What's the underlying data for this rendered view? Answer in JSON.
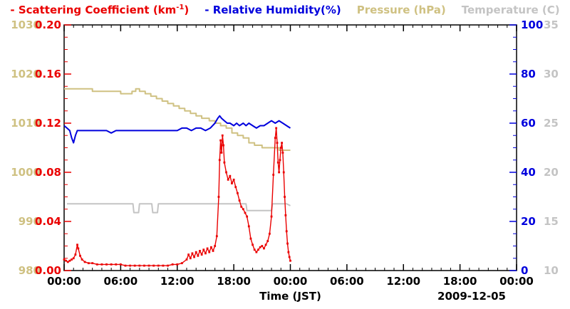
{
  "legend": {
    "scattering_pre": "- Scattering Coefficient (km",
    "scattering_sup": "-1",
    "scattering_post": ")",
    "humidity": "- Relative Humidity(%)",
    "pressure": "Pressure (hPa)",
    "temperature": "Temperature (C)"
  },
  "chart_data": {
    "type": "line",
    "title": "",
    "date_label": "2009-12-05",
    "x_axis": {
      "label": "Time (JST)",
      "range": [
        0,
        48
      ],
      "minor_step": 1,
      "tick_values": [
        0,
        6,
        12,
        18,
        24,
        30,
        36,
        42,
        48
      ],
      "tick_labels": [
        "00:00",
        "06:00",
        "12:00",
        "18:00",
        "00:00",
        "06:00",
        "12:00",
        "18:00",
        "00:00"
      ]
    },
    "y_axes": [
      {
        "id": "pressure",
        "label": "Pressure (hPa)",
        "color": "#cfc182",
        "range": [
          980,
          1030
        ],
        "tick_values": [
          980,
          990,
          1000,
          1010,
          1020,
          1030
        ],
        "tick_labels": [
          "980",
          "990",
          "1000",
          "1010",
          "1020",
          "1030"
        ]
      },
      {
        "id": "scattering",
        "label": "Scattering Coefficient (km-1)",
        "color": "#ea0000",
        "range": [
          0,
          0.2
        ],
        "minor_step": 0.01,
        "tick_values": [
          0,
          0.04,
          0.08,
          0.12,
          0.16,
          0.2
        ],
        "tick_labels": [
          "0.00",
          "0.04",
          "0.08",
          "0.12",
          "0.16",
          "0.20"
        ]
      },
      {
        "id": "humidity",
        "label": "Relative Humidity(%)",
        "color": "#0000dd",
        "range": [
          0,
          100
        ],
        "minor_step": 5,
        "tick_values": [
          0,
          20,
          40,
          60,
          80,
          100
        ],
        "tick_labels": [
          "0",
          "20",
          "40",
          "60",
          "80",
          "100"
        ]
      },
      {
        "id": "temperature",
        "label": "Temperature (C)",
        "color": "#c4c4c4",
        "range": [
          10,
          35
        ],
        "tick_values": [
          10,
          15,
          20,
          25,
          30,
          35
        ],
        "tick_labels": [
          "10",
          "15",
          "20",
          "25",
          "30",
          "35"
        ]
      }
    ],
    "series": [
      {
        "id": "pressure",
        "name": "Pressure (hPa)",
        "axis": "pressure",
        "color": "#cfc182",
        "step": true,
        "marker": false,
        "points": [
          [
            0,
            1017
          ],
          [
            1,
            1017
          ],
          [
            2,
            1017
          ],
          [
            3,
            1016.5
          ],
          [
            4,
            1016.5
          ],
          [
            5,
            1016.5
          ],
          [
            6,
            1016
          ],
          [
            6.6,
            1016
          ],
          [
            7.2,
            1016.5
          ],
          [
            7.6,
            1017
          ],
          [
            8,
            1016.5
          ],
          [
            8.6,
            1016
          ],
          [
            9.2,
            1015.5
          ],
          [
            9.8,
            1015
          ],
          [
            10.4,
            1014.5
          ],
          [
            11,
            1014
          ],
          [
            11.6,
            1013.5
          ],
          [
            12.2,
            1013
          ],
          [
            12.8,
            1012.5
          ],
          [
            13.4,
            1012
          ],
          [
            14,
            1011.5
          ],
          [
            14.6,
            1011
          ],
          [
            15.4,
            1010.5
          ],
          [
            16,
            1010
          ],
          [
            16.6,
            1009.5
          ],
          [
            17.2,
            1009
          ],
          [
            17.8,
            1008
          ],
          [
            18.4,
            1007.5
          ],
          [
            19,
            1007
          ],
          [
            19.6,
            1006
          ],
          [
            20.2,
            1005.5
          ],
          [
            21,
            1005
          ],
          [
            22,
            1005
          ],
          [
            22.8,
            1004.5
          ],
          [
            24,
            1004.5
          ]
        ]
      },
      {
        "id": "temperature",
        "name": "Temperature (C)",
        "axis": "temperature",
        "color": "#c4c4c4",
        "step": false,
        "marker": false,
        "points": [
          [
            0.3,
            16.8
          ],
          [
            7.3,
            16.8
          ],
          [
            7.4,
            15.9
          ],
          [
            7.9,
            15.9
          ],
          [
            8,
            16.8
          ],
          [
            9.3,
            16.8
          ],
          [
            9.4,
            15.9
          ],
          [
            9.9,
            15.9
          ],
          [
            10,
            16.8
          ],
          [
            19.3,
            16.8
          ],
          [
            19.4,
            16.1
          ],
          [
            22,
            16.1
          ],
          [
            22.1,
            16.8
          ],
          [
            23.6,
            16.8
          ],
          [
            24,
            16.6
          ]
        ]
      },
      {
        "id": "humidity",
        "name": "Relative Humidity(%)",
        "axis": "humidity",
        "color": "#0000dd",
        "step": false,
        "marker": false,
        "points": [
          [
            0,
            59
          ],
          [
            0.3,
            58
          ],
          [
            0.6,
            57
          ],
          [
            0.8,
            54
          ],
          [
            1,
            52
          ],
          [
            1.2,
            55
          ],
          [
            1.4,
            57
          ],
          [
            2,
            57
          ],
          [
            2.5,
            57
          ],
          [
            3,
            57
          ],
          [
            3.5,
            57
          ],
          [
            4,
            57
          ],
          [
            4.5,
            57
          ],
          [
            5,
            56
          ],
          [
            5.5,
            57
          ],
          [
            6,
            57
          ],
          [
            6.5,
            57
          ],
          [
            7,
            57
          ],
          [
            7.5,
            57
          ],
          [
            8,
            57
          ],
          [
            8.5,
            57
          ],
          [
            9,
            57
          ],
          [
            9.5,
            57
          ],
          [
            10,
            57
          ],
          [
            10.5,
            57
          ],
          [
            11,
            57
          ],
          [
            11.5,
            57
          ],
          [
            12,
            57
          ],
          [
            12.5,
            58
          ],
          [
            13,
            58
          ],
          [
            13.5,
            57
          ],
          [
            14,
            58
          ],
          [
            14.5,
            58
          ],
          [
            15,
            57
          ],
          [
            15.5,
            58
          ],
          [
            16,
            60
          ],
          [
            16.3,
            62
          ],
          [
            16.5,
            63
          ],
          [
            16.7,
            62
          ],
          [
            17,
            61
          ],
          [
            17.3,
            60
          ],
          [
            17.6,
            60
          ],
          [
            18,
            59
          ],
          [
            18.3,
            60
          ],
          [
            18.6,
            59
          ],
          [
            19,
            60
          ],
          [
            19.3,
            59
          ],
          [
            19.6,
            60
          ],
          [
            20,
            59
          ],
          [
            20.4,
            58
          ],
          [
            20.8,
            59
          ],
          [
            21.2,
            59
          ],
          [
            21.6,
            60
          ],
          [
            22,
            61
          ],
          [
            22.4,
            60
          ],
          [
            22.8,
            61
          ],
          [
            23.2,
            60
          ],
          [
            23.6,
            59
          ],
          [
            24,
            58
          ]
        ]
      },
      {
        "id": "scattering",
        "name": "Scattering Coefficient (km-1)",
        "axis": "scattering",
        "color": "#ea0000",
        "step": false,
        "marker": true,
        "points": [
          [
            0,
            0.009
          ],
          [
            0.2,
            0.008
          ],
          [
            0.4,
            0.007
          ],
          [
            0.6,
            0.008
          ],
          [
            0.8,
            0.009
          ],
          [
            1,
            0.01
          ],
          [
            1.2,
            0.013
          ],
          [
            1.4,
            0.021
          ],
          [
            1.5,
            0.018
          ],
          [
            1.7,
            0.012
          ],
          [
            1.9,
            0.009
          ],
          [
            2.2,
            0.007
          ],
          [
            2.6,
            0.006
          ],
          [
            3,
            0.006
          ],
          [
            3.5,
            0.005
          ],
          [
            4,
            0.005
          ],
          [
            4.5,
            0.005
          ],
          [
            5,
            0.005
          ],
          [
            5.5,
            0.005
          ],
          [
            6,
            0.005
          ],
          [
            6.5,
            0.004
          ],
          [
            7,
            0.004
          ],
          [
            7.5,
            0.004
          ],
          [
            8,
            0.004
          ],
          [
            8.5,
            0.004
          ],
          [
            9,
            0.004
          ],
          [
            9.5,
            0.004
          ],
          [
            10,
            0.004
          ],
          [
            10.5,
            0.004
          ],
          [
            11,
            0.004
          ],
          [
            11.5,
            0.005
          ],
          [
            12,
            0.005
          ],
          [
            12.5,
            0.006
          ],
          [
            13,
            0.009
          ],
          [
            13.2,
            0.013
          ],
          [
            13.4,
            0.01
          ],
          [
            13.6,
            0.014
          ],
          [
            13.8,
            0.011
          ],
          [
            14,
            0.015
          ],
          [
            14.2,
            0.012
          ],
          [
            14.4,
            0.016
          ],
          [
            14.6,
            0.013
          ],
          [
            14.8,
            0.017
          ],
          [
            15,
            0.014
          ],
          [
            15.2,
            0.018
          ],
          [
            15.4,
            0.015
          ],
          [
            15.6,
            0.019
          ],
          [
            15.8,
            0.016
          ],
          [
            16,
            0.02
          ],
          [
            16.2,
            0.028
          ],
          [
            16.4,
            0.06
          ],
          [
            16.5,
            0.09
          ],
          [
            16.6,
            0.106
          ],
          [
            16.7,
            0.096
          ],
          [
            16.8,
            0.11
          ],
          [
            16.9,
            0.102
          ],
          [
            17,
            0.088
          ],
          [
            17.2,
            0.08
          ],
          [
            17.4,
            0.074
          ],
          [
            17.6,
            0.077
          ],
          [
            17.8,
            0.071
          ],
          [
            18,
            0.074
          ],
          [
            18.2,
            0.068
          ],
          [
            18.4,
            0.063
          ],
          [
            18.6,
            0.057
          ],
          [
            18.8,
            0.052
          ],
          [
            19,
            0.05
          ],
          [
            19.2,
            0.047
          ],
          [
            19.4,
            0.044
          ],
          [
            19.6,
            0.036
          ],
          [
            19.8,
            0.026
          ],
          [
            20,
            0.021
          ],
          [
            20.2,
            0.017
          ],
          [
            20.4,
            0.015
          ],
          [
            20.6,
            0.017
          ],
          [
            20.8,
            0.019
          ],
          [
            21,
            0.02
          ],
          [
            21.2,
            0.018
          ],
          [
            21.4,
            0.021
          ],
          [
            21.6,
            0.024
          ],
          [
            21.8,
            0.03
          ],
          [
            22,
            0.044
          ],
          [
            22.2,
            0.078
          ],
          [
            22.4,
            0.108
          ],
          [
            22.5,
            0.116
          ],
          [
            22.6,
            0.104
          ],
          [
            22.7,
            0.088
          ],
          [
            22.8,
            0.08
          ],
          [
            22.9,
            0.09
          ],
          [
            23,
            0.1
          ],
          [
            23.1,
            0.104
          ],
          [
            23.2,
            0.096
          ],
          [
            23.3,
            0.08
          ],
          [
            23.4,
            0.06
          ],
          [
            23.5,
            0.045
          ],
          [
            23.6,
            0.032
          ],
          [
            23.7,
            0.022
          ],
          [
            23.8,
            0.015
          ],
          [
            23.9,
            0.011
          ],
          [
            24,
            0.008
          ]
        ]
      }
    ]
  }
}
